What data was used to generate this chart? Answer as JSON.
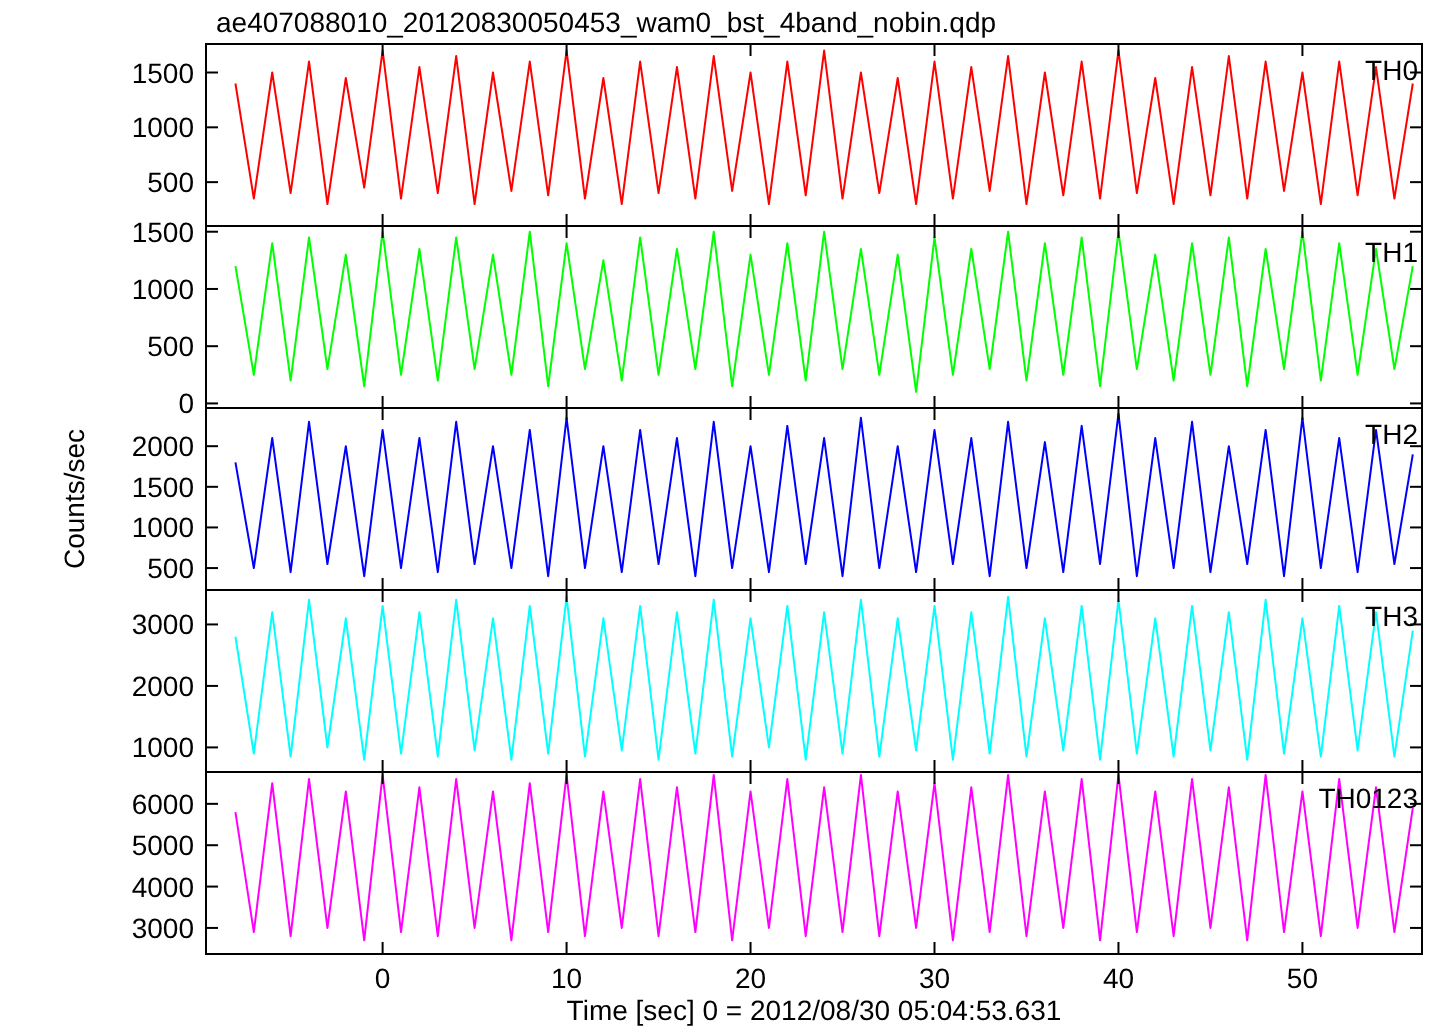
{
  "chart_data": [
    {
      "type": "line",
      "title": "ae407088010_20120830050453_wam0_bst_4band_nobin.qdp",
      "x": [
        -8,
        -7,
        -6,
        -5,
        -4,
        -3,
        -2,
        -1,
        0,
        1,
        2,
        3,
        4,
        5,
        6,
        7,
        8,
        9,
        10,
        11,
        12,
        13,
        14,
        15,
        16,
        17,
        18,
        19,
        20,
        21,
        22,
        23,
        24,
        25,
        26,
        27,
        28,
        29,
        30,
        31,
        32,
        33,
        34,
        35,
        36,
        37,
        38,
        39,
        40,
        41,
        42,
        43,
        44,
        45,
        46,
        47,
        48,
        49,
        50,
        51,
        52,
        53,
        54,
        55,
        56
      ],
      "xlim": [
        -9.6,
        56.5
      ],
      "xticks": [
        0,
        10,
        20,
        30,
        40,
        50
      ],
      "ylim": [
        100,
        1760
      ],
      "yticks": [
        500,
        1000,
        1500
      ],
      "tick_labels": "y",
      "series": [
        {
          "name": "TH0",
          "color": "#ff0000",
          "values": [
            1400,
            350,
            1500,
            400,
            1600,
            300,
            1450,
            450,
            1700,
            350,
            1550,
            400,
            1650,
            300,
            1500,
            420,
            1600,
            380,
            1700,
            350,
            1450,
            300,
            1600,
            400,
            1550,
            350,
            1650,
            420,
            1500,
            300,
            1600,
            380,
            1700,
            350,
            1500,
            400,
            1450,
            300,
            1600,
            350,
            1550,
            420,
            1650,
            300,
            1500,
            380,
            1600,
            350,
            1700,
            400,
            1450,
            300,
            1550,
            380,
            1650,
            350,
            1600,
            420,
            1500,
            300,
            1600,
            380,
            1550,
            350,
            1400
          ]
        }
      ]
    },
    {
      "type": "line",
      "x": [
        -8,
        -7,
        -6,
        -5,
        -4,
        -3,
        -2,
        -1,
        0,
        1,
        2,
        3,
        4,
        5,
        6,
        7,
        8,
        9,
        10,
        11,
        12,
        13,
        14,
        15,
        16,
        17,
        18,
        19,
        20,
        21,
        22,
        23,
        24,
        25,
        26,
        27,
        28,
        29,
        30,
        31,
        32,
        33,
        34,
        35,
        36,
        37,
        38,
        39,
        40,
        41,
        42,
        43,
        44,
        45,
        46,
        47,
        48,
        49,
        50,
        51,
        52,
        53,
        54,
        55,
        56
      ],
      "xlim": [
        -9.6,
        56.5
      ],
      "xticks": [
        0,
        10,
        20,
        30,
        40,
        50
      ],
      "ylim": [
        -40,
        1550
      ],
      "yticks": [
        0,
        500,
        1000,
        1500
      ],
      "tick_labels": "y",
      "series": [
        {
          "name": "TH1",
          "color": "#00ff00",
          "values": [
            1200,
            250,
            1400,
            200,
            1450,
            300,
            1300,
            150,
            1500,
            250,
            1350,
            200,
            1450,
            300,
            1300,
            250,
            1500,
            150,
            1400,
            300,
            1250,
            200,
            1450,
            250,
            1350,
            300,
            1500,
            150,
            1300,
            250,
            1400,
            200,
            1500,
            300,
            1350,
            250,
            1300,
            100,
            1450,
            250,
            1350,
            300,
            1500,
            200,
            1400,
            250,
            1450,
            150,
            1500,
            300,
            1300,
            200,
            1400,
            250,
            1450,
            150,
            1350,
            300,
            1500,
            200,
            1400,
            250,
            1350,
            300,
            1200
          ]
        }
      ]
    },
    {
      "type": "line",
      "ylabel": "Counts/sec",
      "x": [
        -8,
        -7,
        -6,
        -5,
        -4,
        -3,
        -2,
        -1,
        0,
        1,
        2,
        3,
        4,
        5,
        6,
        7,
        8,
        9,
        10,
        11,
        12,
        13,
        14,
        15,
        16,
        17,
        18,
        19,
        20,
        21,
        22,
        23,
        24,
        25,
        26,
        27,
        28,
        29,
        30,
        31,
        32,
        33,
        34,
        35,
        36,
        37,
        38,
        39,
        40,
        41,
        42,
        43,
        44,
        45,
        46,
        47,
        48,
        49,
        50,
        51,
        52,
        53,
        54,
        55,
        56
      ],
      "xlim": [
        -9.6,
        56.5
      ],
      "xticks": [
        0,
        10,
        20,
        30,
        40,
        50
      ],
      "ylim": [
        230,
        2470
      ],
      "yticks": [
        500,
        1000,
        1500,
        2000
      ],
      "tick_labels": "y",
      "series": [
        {
          "name": "TH2",
          "color": "#0000ff",
          "values": [
            1800,
            500,
            2100,
            450,
            2300,
            550,
            2000,
            400,
            2200,
            500,
            2100,
            450,
            2300,
            550,
            2000,
            500,
            2200,
            400,
            2350,
            500,
            2000,
            450,
            2200,
            550,
            2100,
            400,
            2300,
            500,
            2000,
            450,
            2250,
            550,
            2100,
            400,
            2350,
            500,
            2000,
            450,
            2200,
            550,
            2100,
            400,
            2300,
            500,
            2050,
            450,
            2250,
            550,
            2400,
            400,
            2100,
            500,
            2300,
            450,
            2000,
            550,
            2200,
            400,
            2350,
            500,
            2100,
            450,
            2200,
            550,
            1900
          ]
        }
      ]
    },
    {
      "type": "line",
      "x": [
        -8,
        -7,
        -6,
        -5,
        -4,
        -3,
        -2,
        -1,
        0,
        1,
        2,
        3,
        4,
        5,
        6,
        7,
        8,
        9,
        10,
        11,
        12,
        13,
        14,
        15,
        16,
        17,
        18,
        19,
        20,
        21,
        22,
        23,
        24,
        25,
        26,
        27,
        28,
        29,
        30,
        31,
        32,
        33,
        34,
        35,
        36,
        37,
        38,
        39,
        40,
        41,
        42,
        43,
        44,
        45,
        46,
        47,
        48,
        49,
        50,
        51,
        52,
        53,
        54,
        55,
        56
      ],
      "xlim": [
        -9.6,
        56.5
      ],
      "xticks": [
        0,
        10,
        20,
        30,
        40,
        50
      ],
      "ylim": [
        600,
        3560
      ],
      "yticks": [
        1000,
        2000,
        3000
      ],
      "tick_labels": "y",
      "series": [
        {
          "name": "TH3",
          "color": "#00ffff",
          "values": [
            2800,
            900,
            3200,
            850,
            3400,
            1000,
            3100,
            800,
            3300,
            900,
            3200,
            850,
            3400,
            950,
            3100,
            800,
            3300,
            900,
            3450,
            850,
            3100,
            950,
            3300,
            800,
            3200,
            900,
            3400,
            850,
            3100,
            1000,
            3300,
            800,
            3200,
            900,
            3400,
            850,
            3100,
            950,
            3300,
            800,
            3200,
            900,
            3450,
            850,
            3100,
            950,
            3300,
            800,
            3400,
            900,
            3100,
            850,
            3300,
            950,
            3200,
            800,
            3400,
            900,
            3100,
            850,
            3300,
            950,
            3200,
            850,
            2900
          ]
        }
      ]
    },
    {
      "type": "line",
      "xlabel": "Time [sec] 0 = 2012/08/30 05:04:53.631",
      "x": [
        -8,
        -7,
        -6,
        -5,
        -4,
        -3,
        -2,
        -1,
        0,
        1,
        2,
        3,
        4,
        5,
        6,
        7,
        8,
        9,
        10,
        11,
        12,
        13,
        14,
        15,
        16,
        17,
        18,
        19,
        20,
        21,
        22,
        23,
        24,
        25,
        26,
        27,
        28,
        29,
        30,
        31,
        32,
        33,
        34,
        35,
        36,
        37,
        38,
        39,
        40,
        41,
        42,
        43,
        44,
        45,
        46,
        47,
        48,
        49,
        50,
        51,
        52,
        53,
        54,
        55,
        56
      ],
      "xlim": [
        -9.6,
        56.5
      ],
      "xticks": [
        0,
        10,
        20,
        30,
        40,
        50
      ],
      "ylim": [
        2370,
        6770
      ],
      "yticks": [
        3000,
        4000,
        5000,
        6000
      ],
      "series": [
        {
          "name": "TH0123",
          "color": "#ff00ff",
          "values": [
            5800,
            2900,
            6500,
            2800,
            6600,
            3000,
            6300,
            2700,
            6700,
            2900,
            6400,
            2800,
            6600,
            3000,
            6300,
            2700,
            6500,
            2900,
            6700,
            2800,
            6300,
            3000,
            6600,
            2800,
            6400,
            2900,
            6700,
            2700,
            6300,
            3000,
            6600,
            2800,
            6400,
            2900,
            6700,
            2800,
            6300,
            3000,
            6500,
            2700,
            6400,
            2900,
            6700,
            2800,
            6300,
            3000,
            6600,
            2700,
            6700,
            2900,
            6300,
            2800,
            6600,
            3000,
            6400,
            2700,
            6700,
            2900,
            6300,
            2800,
            6600,
            3000,
            6400,
            2900,
            5900
          ]
        }
      ]
    }
  ]
}
